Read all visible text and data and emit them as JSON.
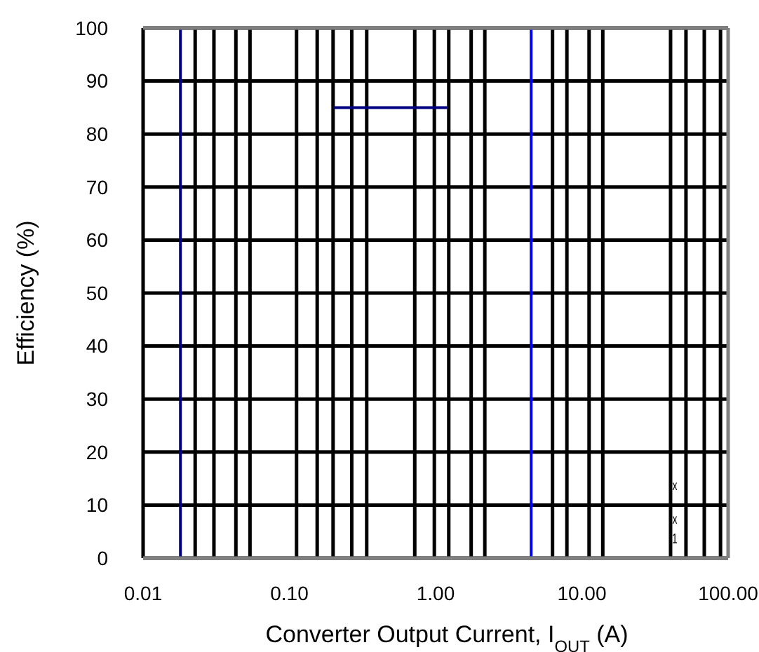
{
  "chart_data": {
    "type": "line",
    "xlabel": "Converter Output Current, I$_{OUT}$ (A)",
    "ylabel": "Efficiency (%)",
    "log": "x",
    "grid": true,
    "xlim": [
      0.01,
      100
    ],
    "ylim": [
      0,
      100
    ],
    "xticks": [
      {
        "value": 0.01,
        "label": "0.01"
      },
      {
        "value": 0.1,
        "label": "0.10"
      },
      {
        "value": 1,
        "label": "1.00"
      },
      {
        "value": 10,
        "label": "10.00"
      },
      {
        "value": 100,
        "label": "100.00"
      },
      {
        "value": 0.0227,
        "label": null
      },
      {
        "value": 0.0305,
        "label": null
      },
      {
        "value": 0.0431,
        "label": null
      },
      {
        "value": 0.0538,
        "label": null
      },
      {
        "value": 0.112,
        "label": null
      },
      {
        "value": 0.155,
        "label": null
      },
      {
        "value": 0.199,
        "label": null
      },
      {
        "value": 0.267,
        "label": null
      },
      {
        "value": 0.338,
        "label": null
      },
      {
        "value": 0.72,
        "label": null
      },
      {
        "value": 0.98,
        "label": null
      },
      {
        "value": 1.23,
        "label": null
      },
      {
        "value": 1.75,
        "label": null
      },
      {
        "value": 2.17,
        "label": null
      },
      {
        "value": 6.3,
        "label": null
      },
      {
        "value": 7.9,
        "label": null
      },
      {
        "value": 11.2,
        "label": null
      },
      {
        "value": 13.9,
        "label": null
      },
      {
        "value": 40.4,
        "label": null
      },
      {
        "value": 51.5,
        "label": null
      },
      {
        "value": 68.7,
        "label": null
      },
      {
        "value": 88.7,
        "label": null
      }
    ],
    "yticks": [
      0,
      10,
      20,
      30,
      40,
      50,
      60,
      70,
      80,
      90,
      100
    ],
    "series": [
      {
        "color": "#000080",
        "x": [
          0.018,
          0.018
        ],
        "values": [
          0,
          100
        ]
      },
      {
        "color": "#000080",
        "x": [
          0.2,
          1.2
        ],
        "values": [
          85,
          85
        ]
      },
      {
        "color": "#0000ff",
        "x": [
          4.5,
          4.5
        ],
        "values": [
          0,
          100
        ]
      }
    ],
    "annotations": [
      "x",
      "x",
      "1"
    ]
  }
}
